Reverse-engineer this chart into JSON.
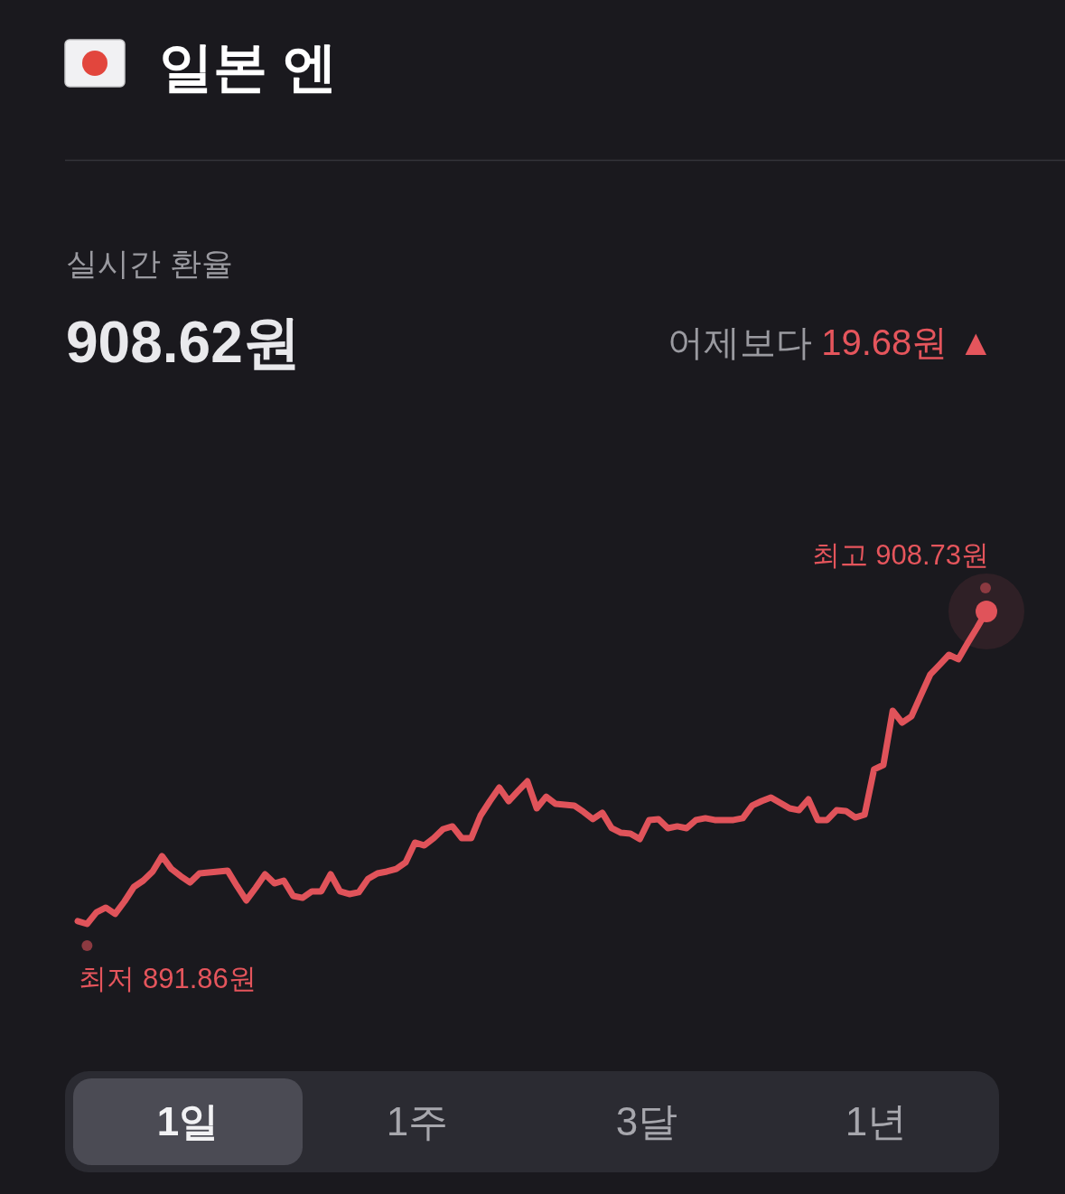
{
  "chart_data": {
    "type": "line",
    "title": "일본 엔",
    "subtitle": "실시간 환율",
    "categories": [
      null,
      null,
      null,
      null,
      null,
      null,
      null,
      null,
      null,
      null,
      null,
      null,
      null,
      null,
      null,
      null,
      null,
      null,
      null,
      null,
      null,
      null,
      null,
      null,
      null,
      null,
      null,
      null,
      null,
      null,
      null,
      null,
      null,
      null,
      null,
      null,
      null,
      null,
      null,
      null,
      null,
      null,
      null,
      null,
      null,
      null,
      null,
      null,
      null,
      null,
      null,
      null,
      null,
      null,
      null,
      null,
      null,
      null,
      null,
      null,
      null,
      null,
      null,
      null,
      null,
      null,
      null,
      null,
      null,
      null,
      null,
      null,
      null,
      null,
      null,
      null,
      null,
      null,
      null,
      null,
      null,
      null,
      null,
      null,
      null,
      null,
      null,
      null,
      null,
      null,
      null,
      null,
      null,
      null,
      null,
      null,
      null,
      null
    ],
    "series": [
      {
        "color": "#e0535a",
        "values": [
          892.01,
          891.86,
          892.49,
          892.74,
          892.4,
          893.08,
          893.86,
          894.2,
          894.69,
          895.52,
          894.83,
          894.44,
          894.1,
          894.59,
          894.64,
          894.69,
          894.74,
          893.91,
          893.13,
          893.81,
          894.54,
          894.05,
          894.2,
          893.37,
          893.27,
          893.62,
          893.62,
          894.54,
          893.62,
          893.47,
          893.57,
          894.3,
          894.59,
          894.69,
          894.83,
          895.18,
          896.25,
          896.1,
          896.49,
          896.98,
          897.13,
          896.49,
          896.49,
          897.71,
          898.49,
          899.22,
          898.49,
          899.03,
          899.56,
          898.1,
          898.73,
          898.34,
          898.3,
          898.25,
          897.91,
          897.52,
          897.86,
          897.03,
          896.78,
          896.74,
          896.44,
          897.47,
          897.52,
          897.03,
          897.13,
          897.03,
          897.47,
          897.57,
          897.47,
          897.47,
          897.47,
          897.57,
          898.25,
          898.49,
          898.69,
          898.39,
          898.1,
          898.0,
          898.59,
          897.47,
          897.47,
          898.0,
          897.96,
          897.61,
          897.76,
          900.2,
          900.44,
          903.37,
          902.73,
          903.07,
          904.2,
          905.32,
          905.85,
          906.39,
          906.15,
          907.02,
          907.85,
          908.73
        ],
        "value_labels": [
          null,
          "최저 891.86원",
          null,
          null,
          null,
          null,
          null,
          null,
          null,
          null,
          null,
          null,
          null,
          null,
          null,
          null,
          null,
          null,
          null,
          null,
          null,
          null,
          null,
          null,
          null,
          null,
          null,
          null,
          null,
          null,
          null,
          null,
          null,
          null,
          null,
          null,
          null,
          null,
          null,
          null,
          null,
          null,
          null,
          null,
          null,
          null,
          null,
          null,
          null,
          null,
          null,
          null,
          null,
          null,
          null,
          null,
          null,
          null,
          null,
          null,
          null,
          null,
          null,
          null,
          null,
          null,
          null,
          null,
          null,
          null,
          null,
          null,
          null,
          null,
          null,
          null,
          null,
          null,
          null,
          null,
          null,
          null,
          null,
          null,
          null,
          null,
          null,
          null,
          null,
          null,
          null,
          null,
          null,
          null,
          null,
          null,
          null,
          "최고 908.73원"
        ]
      }
    ],
    "annotations": [
      "908.62원",
      "어제보다",
      "19.68원 ▲",
      "1일",
      "1주",
      "3달",
      "1년"
    ]
  }
}
